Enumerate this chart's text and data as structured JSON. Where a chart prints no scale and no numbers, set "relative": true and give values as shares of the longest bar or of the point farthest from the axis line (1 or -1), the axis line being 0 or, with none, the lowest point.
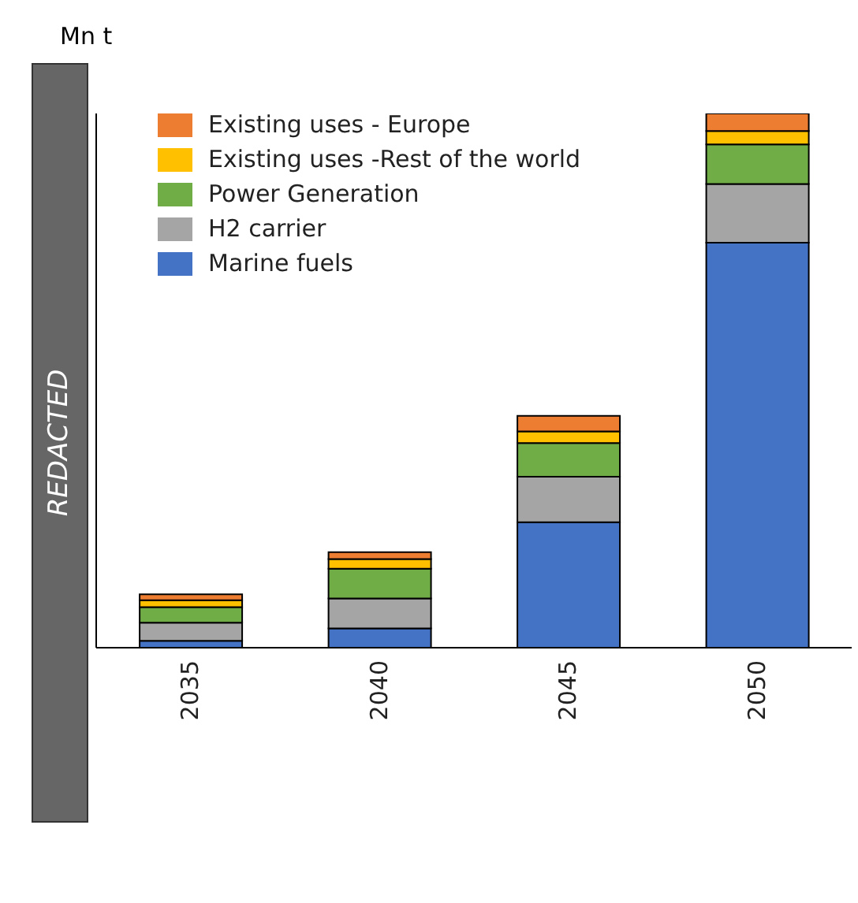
{
  "chart_data": {
    "type": "bar",
    "stacked": true,
    "relative": true,
    "ylabel": "Mn t",
    "annotations": [
      "REDACTED"
    ],
    "legend": "top left",
    "categories": [
      "2035",
      "2040",
      "2045",
      "2050"
    ],
    "series": [
      {
        "name": "Marine fuels",
        "color": "#4472c4",
        "values": [
          0.013,
          0.036,
          0.235,
          0.758
        ]
      },
      {
        "name": "H2 carrier",
        "color": "#a5a5a5",
        "values": [
          0.034,
          0.056,
          0.085,
          0.11
        ]
      },
      {
        "name": "Power Generation",
        "color": "#70ad47",
        "values": [
          0.029,
          0.056,
          0.063,
          0.074
        ]
      },
      {
        "name": "Existing uses -Rest of the world",
        "color": "#ffc000",
        "values": [
          0.013,
          0.018,
          0.022,
          0.025
        ]
      },
      {
        "name": "Existing uses - Europe",
        "color": "#ed7d31",
        "values": [
          0.011,
          0.013,
          0.029,
          0.033
        ]
      }
    ]
  }
}
